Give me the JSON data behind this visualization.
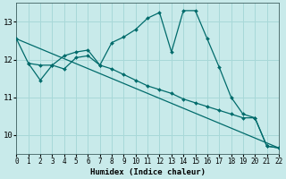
{
  "xlabel": "Humidex (Indice chaleur)",
  "bg_color": "#c8eaea",
  "grid_color": "#a8d8d8",
  "line_color": "#006b6b",
  "line1_x": [
    0,
    1,
    2,
    3,
    4,
    5,
    6,
    7,
    8,
    9,
    10,
    11,
    12,
    13,
    14,
    15,
    16,
    17,
    18,
    19,
    20,
    21,
    22
  ],
  "line1_y": [
    12.55,
    11.9,
    11.85,
    11.85,
    12.1,
    12.2,
    12.25,
    11.85,
    12.45,
    12.6,
    12.8,
    13.1,
    13.25,
    12.2,
    13.3,
    13.3,
    12.55,
    11.8,
    11.0,
    10.55,
    10.45,
    9.7,
    9.65
  ],
  "line2_x": [
    1,
    2,
    3,
    4,
    5,
    6,
    7,
    8,
    9,
    10,
    11,
    12,
    13,
    14,
    15,
    16,
    17,
    18,
    19,
    20,
    21,
    22
  ],
  "line2_y": [
    11.9,
    11.45,
    11.85,
    11.75,
    12.05,
    12.1,
    11.85,
    11.75,
    11.6,
    11.45,
    11.3,
    11.2,
    11.1,
    10.95,
    10.85,
    10.75,
    10.65,
    10.55,
    10.45,
    10.45,
    9.7,
    9.65
  ],
  "line3_x": [
    0,
    22
  ],
  "line3_y": [
    12.55,
    9.65
  ],
  "xlim": [
    0,
    22
  ],
  "ylim": [
    9.5,
    13.5
  ],
  "yticks": [
    10,
    11,
    12,
    13
  ],
  "xticks": [
    0,
    1,
    2,
    3,
    4,
    5,
    6,
    7,
    8,
    9,
    10,
    11,
    12,
    13,
    14,
    15,
    16,
    17,
    18,
    19,
    20,
    21,
    22
  ],
  "xticklabels": [
    "0",
    "1",
    "2",
    "3",
    "4",
    "5",
    "6",
    "7",
    "8",
    "9",
    "10",
    "11",
    "12",
    "13",
    "14",
    "15",
    "16",
    "17",
    "18",
    "19",
    "20",
    "21",
    "22"
  ]
}
